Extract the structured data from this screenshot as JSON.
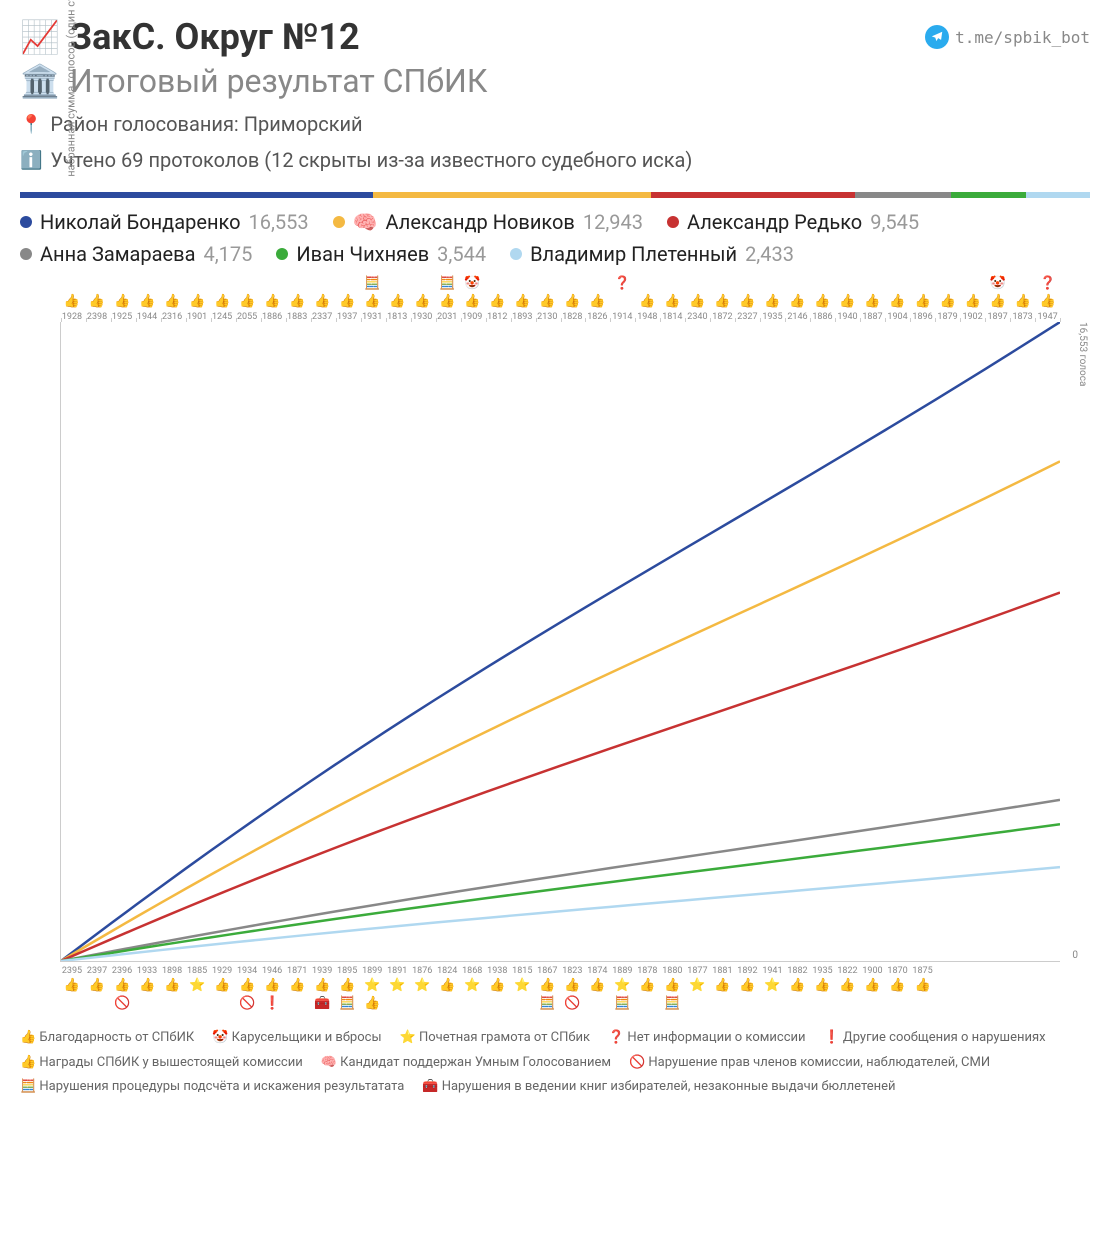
{
  "header": {
    "title_icon": "📈",
    "title": "ЗакС. Округ №12",
    "tg_text": "t.me/spbik_bot",
    "subtitle_icon": "🏛️",
    "subtitle": "Итоговый результат СПбИК",
    "district_icon": "📍",
    "district": "Район голосования: Приморский",
    "info_icon": "ℹ️",
    "info": "Учтено 69 протоколов (12 скрыты из-за известного судебного иска)"
  },
  "colorbar": [
    {
      "color": "#2c4b9e",
      "width": 33
    },
    {
      "color": "#f4b942",
      "width": 26
    },
    {
      "color": "#c73232",
      "width": 19
    },
    {
      "color": "#888888",
      "width": 9
    },
    {
      "color": "#3bab3b",
      "width": 7
    },
    {
      "color": "#b0d8f0",
      "width": 6
    }
  ],
  "candidates": [
    {
      "name": "Николай Бондаренко",
      "votes": "16,553",
      "color": "#2c4b9e",
      "final": 16553,
      "badge": ""
    },
    {
      "name": "Александр Новиков",
      "votes": "12,943",
      "color": "#f4b942",
      "final": 12943,
      "badge": "🧠"
    },
    {
      "name": "Александр Редько",
      "votes": "9,545",
      "color": "#c73232",
      "final": 9545,
      "badge": ""
    },
    {
      "name": "Анна Замараева",
      "votes": "4,175",
      "color": "#888888",
      "final": 4175,
      "badge": ""
    },
    {
      "name": "Иван Чихняев",
      "votes": "3,544",
      "color": "#3bab3b",
      "final": 3544,
      "badge": ""
    },
    {
      "name": "Владимир Плетенный",
      "votes": "2,433",
      "color": "#b0d8f0",
      "final": 2433,
      "badge": ""
    }
  ],
  "chart": {
    "ylabel": "набранная сумма голосов (один столбец – плюс одна комиссия)",
    "ymax": 16553,
    "ymax_label": "16,553 голоса",
    "ymin_label": "0",
    "n_cols": 40,
    "line_width": 2.5,
    "grid_color": "#cccccc",
    "background": "#ffffff"
  },
  "top_labels": [
    "1928",
    "2398",
    "1925",
    "1944",
    "2316",
    "1901",
    "1245",
    "2055",
    "1886",
    "1883",
    "2337",
    "1937",
    "1931",
    "1813",
    "1930",
    "2031",
    "1909",
    "1812",
    "1893",
    "2130",
    "1828",
    "1826",
    "1914",
    "1948",
    "1814",
    "2340",
    "1872",
    "2327",
    "1935",
    "2146",
    "1886",
    "1940",
    "1887",
    "1904",
    "1896",
    "1879",
    "1902",
    "1897",
    "1873",
    "1947"
  ],
  "top_icons": [
    [
      "",
      "👍"
    ],
    [
      "",
      "👍"
    ],
    [
      "",
      "👍"
    ],
    [
      "",
      "👍"
    ],
    [
      "",
      "👍"
    ],
    [
      "",
      "👍"
    ],
    [
      "",
      "👍"
    ],
    [
      "",
      "👍"
    ],
    [
      "",
      "👍"
    ],
    [
      "",
      "👍"
    ],
    [
      "",
      "👍"
    ],
    [
      "",
      "👍"
    ],
    [
      "🧮",
      "👍"
    ],
    [
      "",
      "👍"
    ],
    [
      "",
      "👍"
    ],
    [
      "🧮",
      "👍"
    ],
    [
      "🤡",
      "👍"
    ],
    [
      "",
      "👍"
    ],
    [
      "",
      "👍"
    ],
    [
      "",
      "👍"
    ],
    [
      "",
      "👍"
    ],
    [
      "",
      "👍"
    ],
    [
      "❓",
      ""
    ],
    [
      "",
      "👍"
    ],
    [
      "",
      "👍"
    ],
    [
      "",
      "👍"
    ],
    [
      "",
      "👍"
    ],
    [
      "",
      "👍"
    ],
    [
      "",
      "👍"
    ],
    [
      "",
      "👍"
    ],
    [
      "",
      "👍"
    ],
    [
      "",
      "👍"
    ],
    [
      "",
      "👍"
    ],
    [
      "",
      "👍"
    ],
    [
      "",
      "👍"
    ],
    [
      "",
      "👍"
    ],
    [
      "",
      "👍"
    ],
    [
      "🤡",
      "👍"
    ],
    [
      "",
      "👍"
    ],
    [
      "❓",
      "👍"
    ]
  ],
  "bot_labels": [
    "2395",
    "2397",
    "2396",
    "1933",
    "1898",
    "1885",
    "1929",
    "1934",
    "1946",
    "1871",
    "1939",
    "1895",
    "1899",
    "1891",
    "1876",
    "1824",
    "1868",
    "1938",
    "1815",
    "1867",
    "1823",
    "1874",
    "1889",
    "1878",
    "1880",
    "1877",
    "1881",
    "1892",
    "1941",
    "1882",
    "1935",
    "1822",
    "1900",
    "1870",
    "1875",
    "",
    "",
    "",
    "",
    ""
  ],
  "bot_icons": [
    [
      "👍",
      ""
    ],
    [
      "👍",
      ""
    ],
    [
      "👍",
      "🚫"
    ],
    [
      "👍",
      ""
    ],
    [
      "👍",
      ""
    ],
    [
      "⭐",
      ""
    ],
    [
      "👍",
      ""
    ],
    [
      "👍",
      "🚫"
    ],
    [
      "👍",
      "❗"
    ],
    [
      "👍",
      ""
    ],
    [
      "👍",
      "🧰"
    ],
    [
      "👍",
      "🧮"
    ],
    [
      "⭐",
      "👍"
    ],
    [
      "⭐",
      ""
    ],
    [
      "⭐",
      ""
    ],
    [
      "👍",
      ""
    ],
    [
      "⭐",
      ""
    ],
    [
      "👍",
      ""
    ],
    [
      "⭐",
      ""
    ],
    [
      "👍",
      "🧮"
    ],
    [
      "👍",
      "🚫"
    ],
    [
      "👍",
      ""
    ],
    [
      "⭐",
      "🧮"
    ],
    [
      "👍",
      ""
    ],
    [
      "👍",
      "🧮"
    ],
    [
      "⭐",
      ""
    ],
    [
      "👍",
      ""
    ],
    [
      "👍",
      ""
    ],
    [
      "⭐",
      ""
    ],
    [
      "👍",
      ""
    ],
    [
      "👍",
      ""
    ],
    [
      "👍",
      ""
    ],
    [
      "👍",
      ""
    ],
    [
      "👍",
      ""
    ],
    [
      "👍",
      ""
    ],
    [
      "",
      ""
    ],
    [
      "",
      ""
    ],
    [
      "",
      ""
    ],
    [
      "",
      ""
    ],
    [
      "",
      ""
    ]
  ],
  "footer": [
    {
      "icon": "👍",
      "text": "Благодарность от СПбИК"
    },
    {
      "icon": "🤡",
      "text": "Карусельщики и вбросы"
    },
    {
      "icon": "⭐",
      "text": "Почетная грамота от СПбик"
    },
    {
      "icon": "❓",
      "text": "Нет информации о комиссии"
    },
    {
      "icon": "❗",
      "text": "Другие сообщения о нарушениях"
    },
    {
      "icon": "👍",
      "text": "Награды СПбИК у вышестоящей комиссии"
    },
    {
      "icon": "🧠",
      "text": "Кандидат поддержан Умным Голосованием"
    },
    {
      "icon": "🚫",
      "text": "Нарушение прав членов комиссии, наблюдателей, СМИ"
    },
    {
      "icon": "🧮",
      "text": "Нарушения процедуры подсчёта и искажения результатата"
    },
    {
      "icon": "🧰",
      "text": "Нарушения в ведении книг избирателей, незаконные выдачи бюллетеней"
    }
  ]
}
